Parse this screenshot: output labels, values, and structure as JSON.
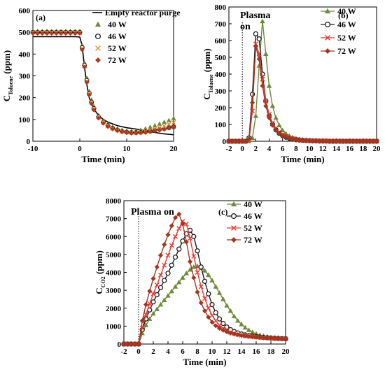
{
  "chart_data": [
    {
      "id": "a",
      "type": "scatter",
      "panel_label": "(a)",
      "xlabel": "Time (min)",
      "ylabel": {
        "main": "C",
        "sub": "Toluene",
        "unit": " (ppm)"
      },
      "xlim": [
        -10,
        20
      ],
      "ylim": [
        0,
        600
      ],
      "xticks": [
        -10,
        0,
        10,
        20
      ],
      "yticks": [
        0,
        100,
        200,
        300,
        400,
        500,
        600
      ],
      "legend_position": "top-right",
      "line_series": {
        "name": "Empty reactor purge",
        "color": "#000000",
        "x": [
          -10,
          -2,
          -1.5,
          -1,
          -0.5,
          0,
          0.5,
          1,
          1.5,
          2,
          3,
          4,
          5,
          6,
          8,
          10,
          12,
          14,
          16,
          18,
          20
        ],
        "y": [
          480,
          480,
          480,
          480,
          479,
          478,
          440,
          340,
          260,
          200,
          148,
          118,
          100,
          88,
          72,
          62,
          56,
          48,
          40,
          34,
          30
        ]
      },
      "series": [
        {
          "name": "40 W",
          "color": "#6f8a3c",
          "marker": "triangle",
          "x": [
            -10,
            -9,
            -8,
            -7,
            -6,
            -5,
            -4,
            -3,
            -2,
            -1,
            0,
            0.5,
            1,
            1.5,
            2,
            2.5,
            3,
            4,
            5,
            6,
            7,
            8,
            9,
            10,
            11,
            12,
            13,
            14,
            15,
            16,
            17,
            18,
            19,
            20
          ],
          "y": [
            505,
            505,
            505,
            505,
            505,
            505,
            505,
            505,
            505,
            505,
            505,
            440,
            360,
            290,
            230,
            190,
            160,
            120,
            95,
            78,
            66,
            56,
            50,
            46,
            45,
            47,
            52,
            58,
            65,
            72,
            80,
            88,
            96,
            105
          ]
        },
        {
          "name": "46 W",
          "color": "#1a1a1a",
          "marker": "circle",
          "x": [
            -10,
            -9,
            -8,
            -7,
            -6,
            -5,
            -4,
            -3,
            -2,
            -1,
            0,
            0.5,
            1,
            1.5,
            2,
            2.5,
            3,
            4,
            5,
            6,
            7,
            8,
            9,
            10,
            11,
            12,
            13,
            14,
            15,
            16,
            17,
            18,
            19,
            20
          ],
          "y": [
            500,
            500,
            500,
            500,
            500,
            500,
            500,
            500,
            500,
            500,
            500,
            430,
            350,
            280,
            220,
            180,
            150,
            112,
            88,
            72,
            60,
            52,
            46,
            42,
            40,
            40,
            41,
            43,
            46,
            50,
            54,
            58,
            62,
            66
          ]
        },
        {
          "name": "52 W",
          "color": "#e08c3a",
          "marker": "x",
          "x": [
            -10,
            -9,
            -8,
            -7,
            -6,
            -5,
            -4,
            -3,
            -2,
            -1,
            0,
            0.5,
            1,
            1.5,
            2,
            2.5,
            3,
            4,
            5,
            6,
            7,
            8,
            9,
            10,
            11,
            12,
            13,
            14,
            15,
            16,
            17,
            18,
            19,
            20
          ],
          "y": [
            500,
            500,
            500,
            500,
            500,
            500,
            500,
            500,
            500,
            500,
            498,
            425,
            345,
            275,
            218,
            178,
            148,
            110,
            86,
            70,
            59,
            51,
            45,
            41,
            39,
            40,
            42,
            46,
            51,
            57,
            63,
            70,
            78,
            86
          ]
        },
        {
          "name": "72 W",
          "color": "#b23a1c",
          "marker": "diamond",
          "x": [
            -10,
            -9,
            -8,
            -7,
            -6,
            -5,
            -4,
            -3,
            -2,
            -1,
            0,
            0.5,
            1,
            1.5,
            2,
            2.5,
            3,
            4,
            5,
            6,
            7,
            8,
            9,
            10,
            11,
            12,
            13,
            14,
            15,
            16,
            17,
            18,
            19,
            20
          ],
          "y": [
            495,
            495,
            495,
            495,
            495,
            495,
            495,
            495,
            495,
            495,
            495,
            420,
            340,
            270,
            212,
            172,
            143,
            106,
            82,
            67,
            56,
            48,
            43,
            39,
            37,
            37,
            38,
            40,
            43,
            47,
            51,
            55,
            60,
            64
          ]
        }
      ]
    },
    {
      "id": "b",
      "type": "line",
      "panel_label": "(b)",
      "annotation": [
        "Plasma",
        "on"
      ],
      "xlabel": "Time (min)",
      "ylabel": {
        "main": "C",
        "sub": "Toluene",
        "unit": " (ppm)"
      },
      "xlim": [
        -2,
        20
      ],
      "ylim": [
        0,
        800
      ],
      "xticks": [
        -2,
        0,
        2,
        4,
        6,
        8,
        10,
        12,
        14,
        16,
        18,
        20
      ],
      "yticks": [
        0,
        100,
        200,
        300,
        400,
        500,
        600,
        700,
        800
      ],
      "legend_position": "top-right",
      "x": [
        -2,
        -1.5,
        -1,
        -0.5,
        0,
        0.5,
        1,
        1.5,
        2,
        2.5,
        3,
        3.5,
        4,
        4.5,
        5,
        5.5,
        6,
        6.5,
        7,
        7.5,
        8,
        8.5,
        9,
        9.5,
        10,
        10.5,
        11,
        11.5,
        12,
        12.5,
        13,
        13.5,
        14,
        14.5,
        15,
        15.5,
        16,
        16.5,
        17,
        17.5,
        18,
        18.5,
        19,
        19.5,
        20
      ],
      "series": [
        {
          "name": "40 W",
          "color": "#6f8a3c",
          "marker": "triangle",
          "y": [
            0,
            0,
            0,
            0,
            0,
            0,
            0,
            20,
            150,
            450,
            715,
            520,
            330,
            210,
            140,
            95,
            65,
            45,
            32,
            23,
            17,
            12,
            9,
            7,
            5,
            4,
            3,
            2,
            2,
            1,
            1,
            1,
            0,
            0,
            0,
            0,
            0,
            0,
            0,
            0,
            0,
            0,
            0,
            0,
            0
          ]
        },
        {
          "name": "46 W",
          "color": "#1a1a1a",
          "marker": "circle",
          "y": [
            0,
            0,
            0,
            0,
            0,
            0,
            20,
            280,
            640,
            610,
            400,
            240,
            150,
            100,
            68,
            47,
            33,
            24,
            17,
            12,
            9,
            7,
            5,
            4,
            3,
            2,
            2,
            1,
            1,
            1,
            0,
            0,
            0,
            0,
            0,
            0,
            0,
            0,
            0,
            0,
            0,
            0,
            0,
            0,
            0
          ]
        },
        {
          "name": "52 W",
          "color": "#e53935",
          "marker": "x",
          "y": [
            0,
            0,
            0,
            0,
            0,
            0,
            10,
            180,
            580,
            520,
            370,
            240,
            160,
            110,
            78,
            55,
            40,
            29,
            21,
            15,
            11,
            8,
            6,
            4,
            3,
            2,
            2,
            1,
            1,
            1,
            0,
            0,
            0,
            0,
            0,
            0,
            0,
            0,
            0,
            0,
            0,
            0,
            0,
            0,
            0
          ]
        },
        {
          "name": "72 W",
          "color": "#a0381f",
          "marker": "diamond",
          "y": [
            0,
            0,
            0,
            0,
            0,
            0,
            15,
            230,
            565,
            490,
            330,
            210,
            140,
            95,
            66,
            47,
            34,
            25,
            18,
            13,
            9,
            7,
            5,
            4,
            3,
            2,
            2,
            1,
            1,
            1,
            0,
            0,
            0,
            0,
            0,
            0,
            0,
            0,
            0,
            0,
            0,
            0,
            0,
            0,
            0
          ]
        }
      ]
    },
    {
      "id": "c",
      "type": "line",
      "panel_label": "(c)",
      "annotation": [
        "Plasma on"
      ],
      "xlabel": "Time (min)",
      "ylabel": {
        "main": "C",
        "sub": "CO2",
        "unit": " (ppm)"
      },
      "xlim": [
        -2,
        20
      ],
      "ylim": [
        0,
        8000
      ],
      "xticks": [
        -2,
        0,
        2,
        4,
        6,
        8,
        10,
        12,
        14,
        16,
        18,
        20
      ],
      "yticks": [
        0,
        1000,
        2000,
        3000,
        4000,
        5000,
        6000,
        7000,
        8000
      ],
      "legend_position": "top-right",
      "x": [
        -2,
        -1.5,
        -1,
        -0.5,
        0,
        0.5,
        1,
        1.5,
        2,
        2.5,
        3,
        3.5,
        4,
        4.5,
        5,
        5.5,
        6,
        6.5,
        7,
        7.5,
        8,
        8.5,
        9,
        9.5,
        10,
        10.5,
        11,
        11.5,
        12,
        12.5,
        13,
        13.5,
        14,
        14.5,
        15,
        15.5,
        16,
        16.5,
        17,
        17.5,
        18,
        18.5,
        19,
        19.5,
        20
      ],
      "series": [
        {
          "name": "40 W",
          "color": "#6f8a3c",
          "marker": "triangle",
          "y": [
            0,
            0,
            0,
            0,
            0,
            600,
            1050,
            1400,
            1700,
            1950,
            2200,
            2450,
            2700,
            2950,
            3200,
            3450,
            3700,
            3950,
            4150,
            4300,
            4350,
            4250,
            4100,
            3850,
            3550,
            3200,
            2850,
            2500,
            2150,
            1850,
            1550,
            1300,
            1100,
            920,
            780,
            660,
            570,
            500,
            450,
            410,
            380,
            360,
            340,
            320,
            300
          ]
        },
        {
          "name": "46 W",
          "color": "#1a1a1a",
          "marker": "circle",
          "y": [
            0,
            0,
            0,
            0,
            0,
            800,
            1400,
            1900,
            2350,
            2750,
            3150,
            3550,
            3950,
            4400,
            4850,
            5300,
            5750,
            6150,
            6350,
            6000,
            5200,
            4300,
            3500,
            2800,
            2200,
            1750,
            1400,
            1150,
            950,
            800,
            700,
            620,
            560,
            510,
            470,
            440,
            410,
            390,
            370,
            350,
            330,
            320,
            310,
            300,
            290
          ]
        },
        {
          "name": "52 W",
          "color": "#e53935",
          "marker": "x",
          "y": [
            0,
            0,
            0,
            0,
            0,
            900,
            1650,
            2250,
            2800,
            3300,
            3850,
            4400,
            4950,
            5500,
            6000,
            6450,
            6850,
            6700,
            5900,
            4900,
            4000,
            3200,
            2550,
            2000,
            1600,
            1300,
            1050,
            880,
            760,
            660,
            590,
            530,
            490,
            460,
            430,
            410,
            390,
            370,
            350,
            340,
            330,
            320,
            310,
            300,
            290
          ]
        },
        {
          "name": "72 W",
          "color": "#a0381f",
          "marker": "diamond",
          "y": [
            0,
            0,
            0,
            0,
            0,
            1300,
            2200,
            2950,
            3650,
            4300,
            4950,
            5550,
            6100,
            6600,
            7050,
            7250,
            6700,
            5700,
            4600,
            3700,
            2900,
            2300,
            1850,
            1500,
            1220,
            1020,
            880,
            770,
            680,
            610,
            560,
            520,
            480,
            450,
            420,
            400,
            380,
            360,
            345,
            330,
            320,
            310,
            300,
            290,
            280
          ]
        }
      ]
    }
  ]
}
